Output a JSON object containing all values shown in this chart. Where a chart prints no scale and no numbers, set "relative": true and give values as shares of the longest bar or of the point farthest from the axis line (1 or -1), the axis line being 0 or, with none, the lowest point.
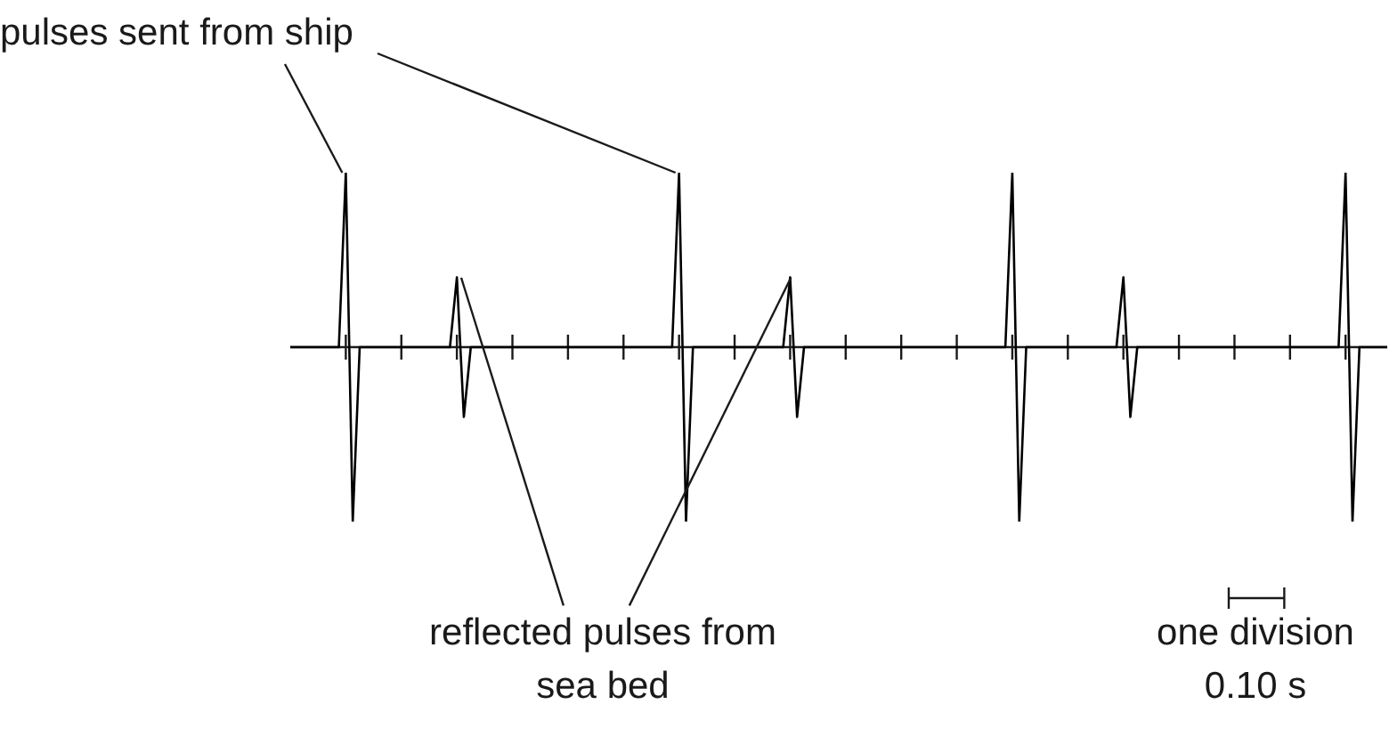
{
  "chart_data": {
    "type": "line",
    "relative": true,
    "categories": [
      null,
      null,
      null,
      null,
      null,
      null,
      null,
      null,
      null,
      null,
      null,
      null,
      null,
      null,
      null,
      null,
      null,
      null,
      null,
      null,
      null,
      null,
      null,
      null,
      null,
      null,
      null,
      null,
      null,
      null,
      null,
      null,
      null,
      null,
      null,
      null,
      null,
      null,
      null,
      null,
      null,
      null,
      null,
      null,
      null,
      null,
      null,
      null,
      null,
      null,
      null,
      null,
      null,
      null,
      null,
      null,
      null,
      null,
      null,
      null,
      null,
      null,
      null,
      null,
      null,
      null,
      null,
      null,
      null,
      null,
      null,
      null,
      null,
      null,
      null,
      null,
      null,
      null,
      null,
      null,
      null,
      null,
      null,
      null,
      null,
      null,
      null,
      null,
      null,
      null,
      null,
      null,
      null,
      null,
      null,
      null,
      null,
      null,
      null,
      null,
      null,
      null,
      null,
      null,
      null,
      null,
      null,
      null,
      null,
      null,
      null,
      null,
      null,
      null,
      null,
      null,
      null,
      null,
      null,
      null,
      null,
      null,
      null,
      null,
      null,
      null,
      null,
      null,
      null,
      null,
      null,
      null,
      null,
      null,
      null,
      null,
      null,
      null,
      null,
      null,
      null,
      null,
      null,
      null,
      null,
      null,
      null,
      null,
      null,
      null,
      null,
      null,
      null,
      null,
      null,
      null,
      null,
      null,
      null
    ],
    "series": [
      {
        "color": "#000000",
        "values": [
          0,
          0,
          0,
          0,
          0,
          0,
          0,
          0,
          1,
          -1,
          0,
          0,
          0,
          0,
          0,
          0,
          0,
          0,
          0,
          0,
          0,
          0,
          0,
          0,
          0.4,
          -0.4,
          0,
          0,
          0,
          0,
          0,
          0,
          0,
          0,
          0,
          0,
          0,
          0,
          0,
          0,
          0,
          0,
          0,
          0,
          0,
          0,
          0,
          0,
          0,
          0,
          0,
          0,
          0,
          0,
          0,
          0,
          1,
          -1,
          0,
          0,
          0,
          0,
          0,
          0,
          0,
          0,
          0,
          0,
          0,
          0,
          0,
          0,
          0.4,
          -0.4,
          0,
          0,
          0,
          0,
          0,
          0,
          0,
          0,
          0,
          0,
          0,
          0,
          0,
          0,
          0,
          0,
          0,
          0,
          0,
          0,
          0,
          0,
          0,
          0,
          0,
          0,
          0,
          0,
          0,
          0,
          1,
          -1,
          0,
          0,
          0,
          0,
          0,
          0,
          0,
          0,
          0,
          0,
          0,
          0,
          0,
          0,
          0.4,
          -0.4,
          0,
          0,
          0,
          0,
          0,
          0,
          0,
          0,
          0,
          0,
          0,
          0,
          0,
          0,
          0,
          0,
          0,
          0,
          0,
          0,
          0,
          0,
          0,
          0,
          0,
          0,
          0,
          0,
          0,
          0,
          1,
          -1,
          0,
          0,
          0,
          0,
          0
        ]
      }
    ],
    "legend": false,
    "marker": "none",
    "line_style": "solid",
    "annotations": [
      "pulses sent from ship",
      "reflected pulses from sea bed",
      "one division 0.10 s"
    ]
  }
}
